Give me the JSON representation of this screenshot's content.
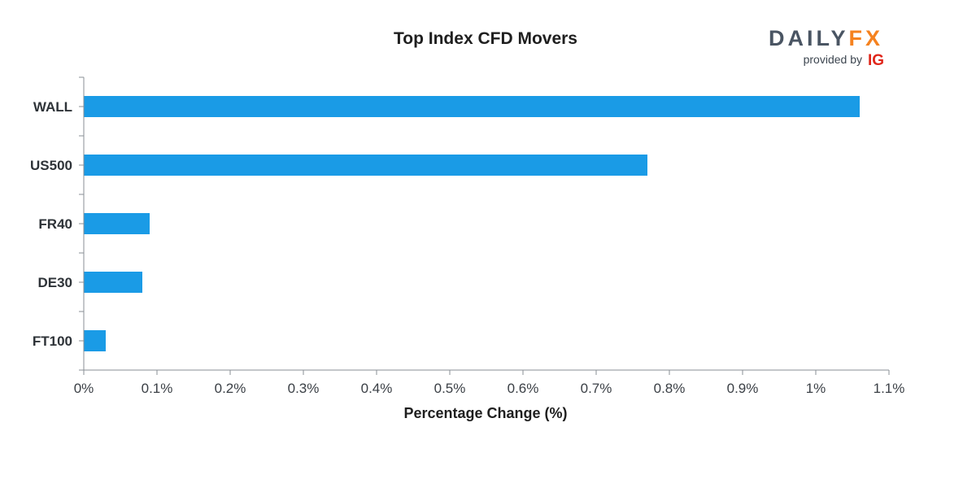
{
  "chart_data": {
    "type": "bar",
    "orientation": "horizontal",
    "title": "Top Index CFD Movers",
    "xlabel": "Percentage Change (%)",
    "ylabel": "",
    "categories": [
      "WALL",
      "US500",
      "FR40",
      "DE30",
      "FT100"
    ],
    "values": [
      1.06,
      0.77,
      0.09,
      0.08,
      0.03
    ],
    "xlim": [
      0,
      1.1
    ],
    "xticks": [
      0,
      0.1,
      0.2,
      0.3,
      0.4,
      0.5,
      0.6,
      0.7,
      0.8,
      0.9,
      1,
      1.1
    ],
    "xtick_labels": [
      "0%",
      "0.1%",
      "0.2%",
      "0.3%",
      "0.4%",
      "0.5%",
      "0.6%",
      "0.7%",
      "0.8%",
      "0.9%",
      "1%",
      "1.1%"
    ],
    "grid": false,
    "bar_color": "#1a9be6"
  },
  "logo": {
    "brand_a": "DAILY",
    "brand_b": "FX",
    "provided_by": "provided by",
    "ig": "IG",
    "color_dark": "#4a5563",
    "color_accent": "#f5821f"
  }
}
